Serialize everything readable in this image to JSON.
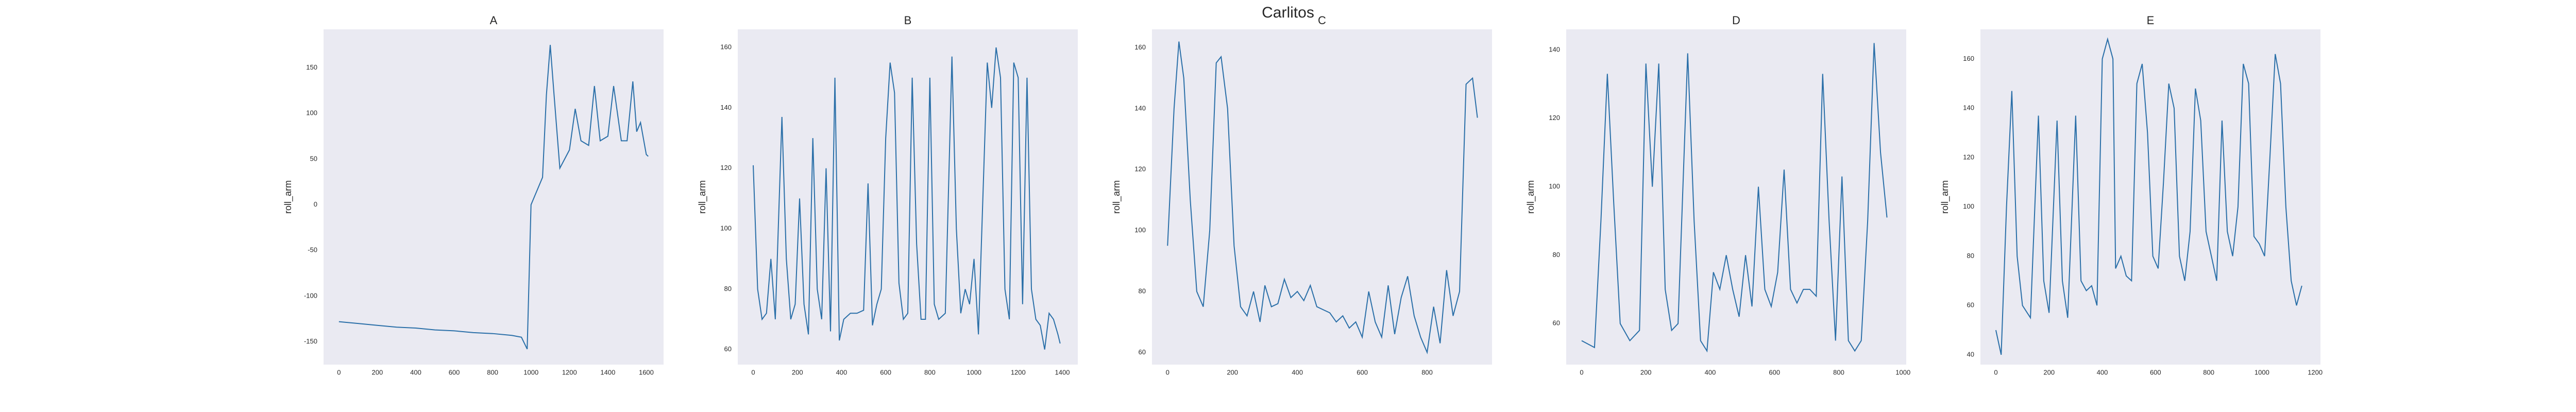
{
  "title": "Carlitos",
  "chart_data": [
    {
      "type": "line",
      "title": "A",
      "y_label": "roll_arm",
      "color": "#2a6fa8",
      "grid": false,
      "xlim": [
        -80,
        1690
      ],
      "ylim": [
        -175,
        192
      ],
      "xticks": [
        0,
        200,
        400,
        600,
        800,
        1000,
        1200,
        1400,
        1600
      ],
      "yticks": [
        -150,
        -100,
        -50,
        0,
        50,
        100,
        150
      ],
      "x": [
        0,
        100,
        200,
        300,
        400,
        500,
        600,
        700,
        800,
        900,
        950,
        980,
        1000,
        1030,
        1060,
        1080,
        1100,
        1120,
        1150,
        1200,
        1230,
        1260,
        1300,
        1330,
        1360,
        1400,
        1430,
        1470,
        1500,
        1530,
        1550,
        1570,
        1600,
        1610
      ],
      "values": [
        -128,
        -130,
        -132,
        -134,
        -135,
        -137,
        -138,
        -140,
        -141,
        -143,
        -145,
        -158,
        0,
        15,
        30,
        120,
        175,
        120,
        40,
        60,
        105,
        70,
        65,
        130,
        70,
        75,
        130,
        70,
        70,
        135,
        80,
        90,
        55,
        53
      ]
    },
    {
      "type": "line",
      "title": "B",
      "y_label": "roll_arm",
      "color": "#2a6fa8",
      "grid": false,
      "xlim": [
        -70,
        1470
      ],
      "ylim": [
        55,
        166
      ],
      "xticks": [
        0,
        200,
        400,
        600,
        800,
        1000,
        1200,
        1400
      ],
      "yticks": [
        60,
        80,
        100,
        120,
        140,
        160
      ],
      "x": [
        0,
        20,
        40,
        60,
        80,
        100,
        130,
        150,
        170,
        190,
        210,
        230,
        250,
        270,
        290,
        310,
        330,
        350,
        370,
        390,
        410,
        440,
        470,
        500,
        520,
        540,
        560,
        580,
        600,
        620,
        640,
        660,
        680,
        700,
        720,
        740,
        760,
        780,
        800,
        820,
        840,
        870,
        900,
        920,
        940,
        960,
        980,
        1000,
        1020,
        1040,
        1060,
        1080,
        1100,
        1120,
        1140,
        1160,
        1180,
        1200,
        1220,
        1240,
        1260,
        1280,
        1300,
        1320,
        1340,
        1360,
        1380,
        1390
      ],
      "values": [
        121,
        80,
        70,
        72,
        90,
        70,
        137,
        90,
        70,
        75,
        110,
        75,
        65,
        130,
        80,
        70,
        120,
        66,
        150,
        63,
        70,
        72,
        72,
        73,
        115,
        68,
        75,
        80,
        130,
        155,
        145,
        82,
        70,
        72,
        150,
        95,
        70,
        70,
        150,
        75,
        70,
        72,
        157,
        100,
        72,
        80,
        75,
        90,
        65,
        110,
        155,
        140,
        160,
        150,
        80,
        70,
        155,
        150,
        75,
        150,
        80,
        70,
        68,
        60,
        72,
        70,
        65,
        62
      ]
    },
    {
      "type": "line",
      "title": "C",
      "y_label": "roll_arm",
      "color": "#2a6fa8",
      "grid": false,
      "xlim": [
        -48,
        1000
      ],
      "ylim": [
        56,
        166
      ],
      "xticks": [
        0,
        200,
        400,
        600,
        800
      ],
      "yticks": [
        60,
        80,
        100,
        120,
        140,
        160
      ],
      "x": [
        0,
        20,
        35,
        50,
        70,
        90,
        110,
        130,
        150,
        165,
        185,
        205,
        225,
        245,
        265,
        285,
        300,
        320,
        340,
        360,
        380,
        400,
        420,
        440,
        460,
        480,
        500,
        520,
        540,
        560,
        580,
        600,
        620,
        640,
        660,
        680,
        700,
        720,
        740,
        760,
        780,
        800,
        820,
        840,
        860,
        880,
        900,
        920,
        940,
        955
      ],
      "values": [
        95,
        140,
        162,
        150,
        110,
        80,
        75,
        100,
        155,
        157,
        140,
        95,
        75,
        72,
        80,
        70,
        82,
        75,
        76,
        84,
        78,
        80,
        77,
        82,
        75,
        74,
        73,
        70,
        72,
        68,
        70,
        65,
        80,
        70,
        65,
        82,
        66,
        78,
        85,
        72,
        65,
        60,
        75,
        63,
        87,
        72,
        80,
        148,
        150,
        137
      ]
    },
    {
      "type": "line",
      "title": "D",
      "y_label": "roll_arm",
      "color": "#2a6fa8",
      "grid": false,
      "xlim": [
        -48,
        1010
      ],
      "ylim": [
        48,
        146
      ],
      "xticks": [
        0,
        200,
        400,
        600,
        800,
        1000
      ],
      "yticks": [
        60,
        80,
        100,
        120,
        140
      ],
      "x": [
        0,
        20,
        40,
        60,
        80,
        100,
        120,
        150,
        180,
        200,
        220,
        240,
        260,
        280,
        300,
        330,
        350,
        370,
        390,
        410,
        430,
        450,
        470,
        490,
        510,
        530,
        550,
        570,
        590,
        610,
        630,
        650,
        670,
        690,
        710,
        730,
        750,
        770,
        790,
        810,
        830,
        850,
        870,
        890,
        910,
        930,
        950
      ],
      "values": [
        55,
        54,
        53,
        90,
        133,
        95,
        60,
        55,
        58,
        136,
        100,
        136,
        70,
        58,
        60,
        139,
        90,
        55,
        52,
        75,
        70,
        80,
        70,
        62,
        80,
        65,
        100,
        70,
        65,
        75,
        105,
        70,
        66,
        70,
        70,
        68,
        133,
        90,
        55,
        103,
        55,
        52,
        55,
        90,
        142,
        110,
        91
      ]
    },
    {
      "type": "line",
      "title": "E",
      "y_label": "roll_arm",
      "color": "#2a6fa8",
      "grid": false,
      "xlim": [
        -58,
        1220
      ],
      "ylim": [
        36,
        172
      ],
      "xticks": [
        0,
        200,
        400,
        600,
        800,
        1000,
        1200
      ],
      "yticks": [
        40,
        60,
        80,
        100,
        120,
        140,
        160
      ],
      "x": [
        0,
        20,
        40,
        60,
        80,
        100,
        130,
        160,
        180,
        200,
        230,
        250,
        270,
        300,
        320,
        340,
        360,
        380,
        400,
        420,
        440,
        450,
        470,
        490,
        510,
        530,
        550,
        570,
        590,
        610,
        630,
        650,
        670,
        690,
        710,
        730,
        750,
        770,
        790,
        810,
        830,
        850,
        870,
        890,
        910,
        930,
        950,
        970,
        990,
        1010,
        1030,
        1050,
        1070,
        1090,
        1110,
        1130,
        1150
      ],
      "values": [
        50,
        40,
        100,
        147,
        80,
        60,
        55,
        137,
        70,
        57,
        135,
        70,
        55,
        137,
        70,
        66,
        68,
        60,
        160,
        168,
        160,
        75,
        80,
        72,
        70,
        150,
        158,
        130,
        80,
        75,
        110,
        150,
        140,
        80,
        70,
        90,
        148,
        135,
        90,
        80,
        70,
        135,
        90,
        80,
        100,
        158,
        150,
        88,
        85,
        80,
        120,
        162,
        150,
        100,
        70,
        60,
        68
      ]
    }
  ]
}
